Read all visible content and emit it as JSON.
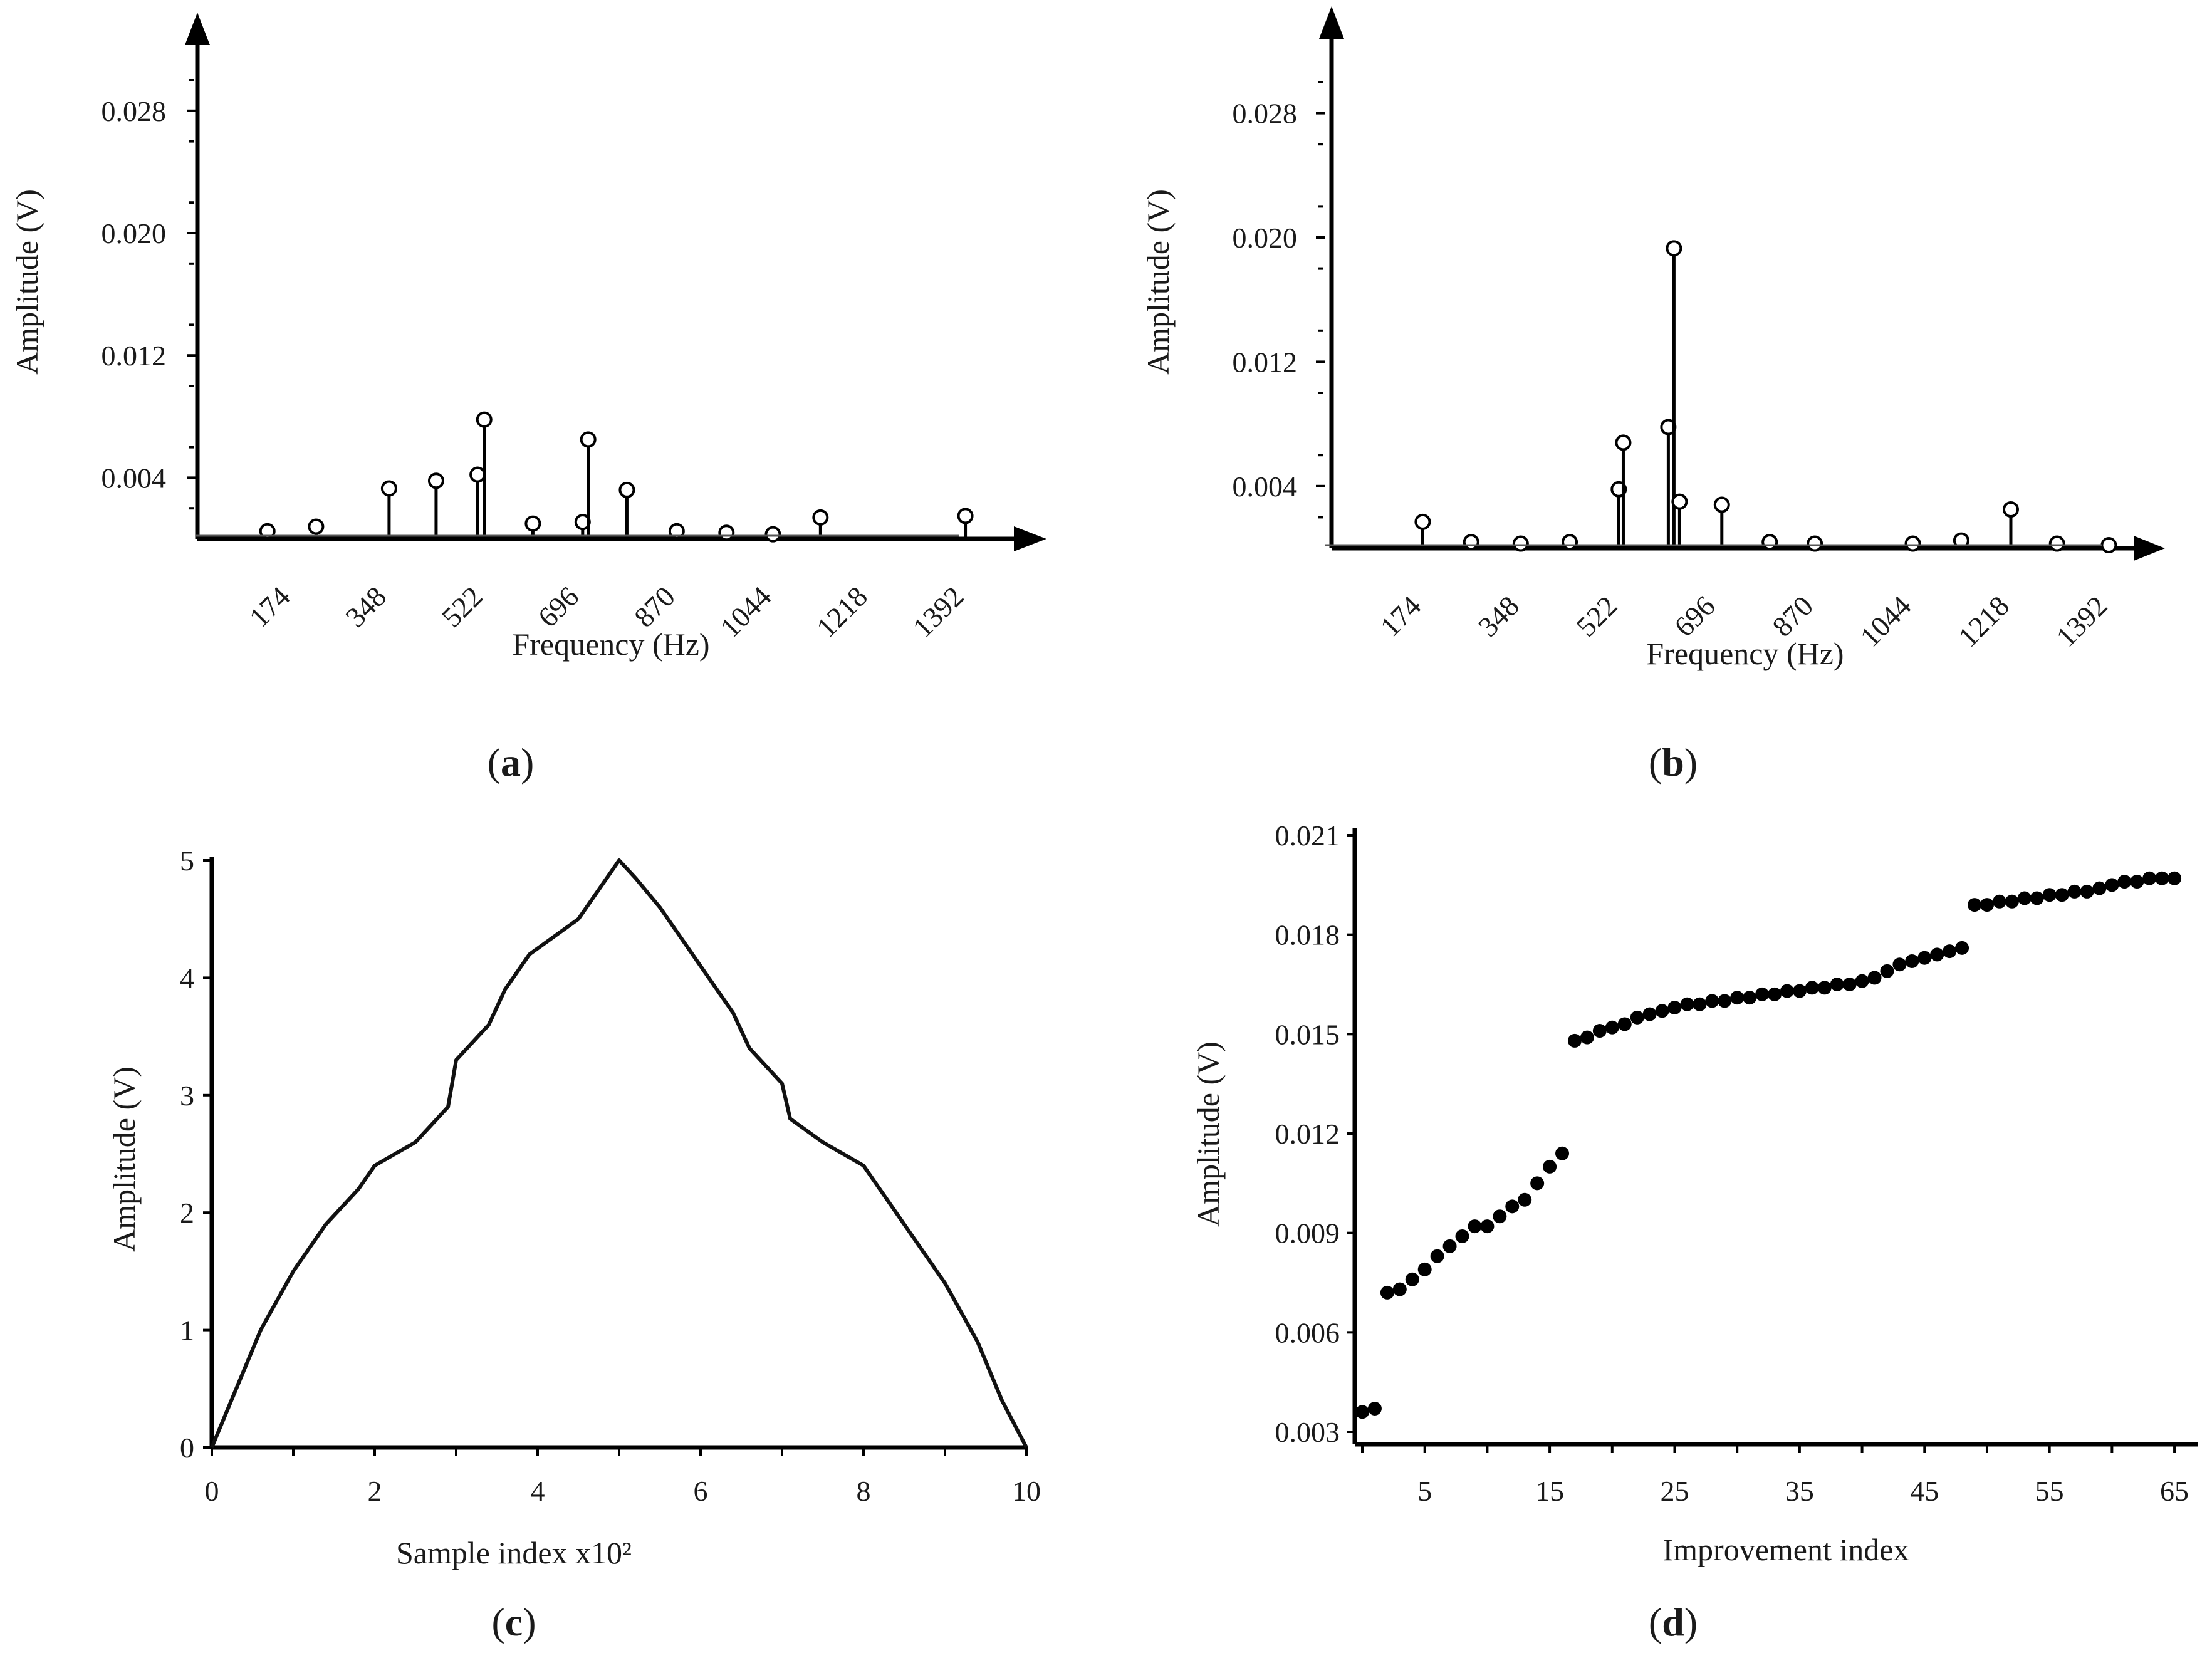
{
  "chart_data": [
    {
      "panel": "a",
      "type": "stem",
      "title": "",
      "xlabel": "Frequency (Hz)",
      "ylabel": "Amplitude (V)",
      "x_ticks": [
        "174",
        "348",
        "522",
        "696",
        "870",
        "1044",
        "1218",
        "1392"
      ],
      "y_ticks": [
        "0.004",
        "0.012",
        "0.020",
        "0.028"
      ],
      "xlim": [
        0,
        1500
      ],
      "ylim": [
        0,
        0.032
      ],
      "points": [
        {
          "x": 130,
          "y": 0.0005
        },
        {
          "x": 218,
          "y": 0.0008
        },
        {
          "x": 350,
          "y": 0.0033
        },
        {
          "x": 435,
          "y": 0.0038
        },
        {
          "x": 510,
          "y": 0.0042
        },
        {
          "x": 522,
          "y": 0.0078
        },
        {
          "x": 610,
          "y": 0.001
        },
        {
          "x": 700,
          "y": 0.0011
        },
        {
          "x": 710,
          "y": 0.0065
        },
        {
          "x": 780,
          "y": 0.0032
        },
        {
          "x": 870,
          "y": 0.0005
        },
        {
          "x": 960,
          "y": 0.0004
        },
        {
          "x": 1044,
          "y": 0.0003
        },
        {
          "x": 1130,
          "y": 0.0014
        },
        {
          "x": 1392,
          "y": 0.0015
        }
      ]
    },
    {
      "panel": "b",
      "type": "stem",
      "title": "",
      "xlabel": "Frequency (Hz)",
      "ylabel": "Amplitude (V)",
      "x_ticks": [
        "174",
        "348",
        "522",
        "696",
        "870",
        "1044",
        "1218",
        "1392"
      ],
      "y_ticks": [
        "0.004",
        "0.012",
        "0.020",
        "0.028"
      ],
      "xlim": [
        0,
        1500
      ],
      "ylim": [
        0,
        0.032
      ],
      "points": [
        {
          "x": 174,
          "y": 0.0017
        },
        {
          "x": 260,
          "y": 0.0004
        },
        {
          "x": 348,
          "y": 0.0003
        },
        {
          "x": 435,
          "y": 0.0004
        },
        {
          "x": 522,
          "y": 0.0038
        },
        {
          "x": 530,
          "y": 0.0068
        },
        {
          "x": 610,
          "y": 0.0078
        },
        {
          "x": 620,
          "y": 0.0193
        },
        {
          "x": 630,
          "y": 0.003
        },
        {
          "x": 705,
          "y": 0.0028
        },
        {
          "x": 790,
          "y": 0.0004
        },
        {
          "x": 870,
          "y": 0.0003
        },
        {
          "x": 1044,
          "y": 0.0003
        },
        {
          "x": 1130,
          "y": 0.0005
        },
        {
          "x": 1218,
          "y": 0.0025
        },
        {
          "x": 1300,
          "y": 0.0003
        },
        {
          "x": 1392,
          "y": 0.0002
        }
      ]
    },
    {
      "panel": "c",
      "type": "line",
      "title": "",
      "xlabel": "Sample index x10²",
      "ylabel": "Amplitude (V)",
      "x_ticks": [
        "0",
        "2",
        "4",
        "6",
        "8",
        "10"
      ],
      "y_ticks": [
        "0",
        "1",
        "2",
        "3",
        "4",
        "5"
      ],
      "xlim": [
        0,
        10
      ],
      "ylim": [
        0,
        5
      ],
      "x": [
        0,
        0.3,
        0.6,
        1.0,
        1.4,
        1.8,
        2.0,
        2.5,
        2.9,
        3.0,
        3.4,
        3.6,
        3.9,
        4.2,
        4.5,
        4.8,
        5.0,
        5.2,
        5.5,
        5.8,
        6.1,
        6.4,
        6.6,
        7.0,
        7.1,
        7.5,
        8.0,
        8.2,
        8.6,
        9.0,
        9.4,
        9.7,
        10.0
      ],
      "y": [
        0,
        0.5,
        1.0,
        1.5,
        1.9,
        2.2,
        2.4,
        2.6,
        2.9,
        3.3,
        3.6,
        3.9,
        4.2,
        4.35,
        4.5,
        4.8,
        5.0,
        4.85,
        4.6,
        4.3,
        4.0,
        3.7,
        3.4,
        3.1,
        2.8,
        2.6,
        2.4,
        2.2,
        1.8,
        1.4,
        0.9,
        0.4,
        0
      ]
    },
    {
      "panel": "d",
      "type": "scatter",
      "title": "",
      "xlabel": "Improvement index",
      "ylabel": "Amplitude (V)",
      "x_ticks": [
        "5",
        "15",
        "25",
        "35",
        "45",
        "55",
        "65"
      ],
      "y_ticks": [
        "0.003",
        "0.006",
        "0.009",
        "0.012",
        "0.015",
        "0.018",
        "0.021"
      ],
      "xlim": [
        0,
        66
      ],
      "ylim": [
        0.003,
        0.021
      ],
      "x": [
        0,
        1,
        2,
        3,
        4,
        5,
        6,
        7,
        8,
        9,
        10,
        11,
        12,
        13,
        14,
        15,
        16,
        17,
        18,
        19,
        20,
        21,
        22,
        23,
        24,
        25,
        26,
        27,
        28,
        29,
        30,
        31,
        32,
        33,
        34,
        35,
        36,
        37,
        38,
        39,
        40,
        41,
        42,
        43,
        44,
        45,
        46,
        47,
        48,
        49,
        50,
        51,
        52,
        53,
        54,
        55,
        56,
        57,
        58,
        59,
        60,
        61,
        62,
        63,
        64,
        65
      ],
      "y": [
        0.0036,
        0.0037,
        0.0072,
        0.0073,
        0.0076,
        0.0079,
        0.0083,
        0.0086,
        0.0089,
        0.0092,
        0.0092,
        0.0095,
        0.0098,
        0.01,
        0.0105,
        0.011,
        0.0114,
        0.0148,
        0.0149,
        0.0151,
        0.0152,
        0.0153,
        0.0155,
        0.0156,
        0.0157,
        0.0158,
        0.0159,
        0.0159,
        0.016,
        0.016,
        0.0161,
        0.0161,
        0.0162,
        0.0162,
        0.0163,
        0.0163,
        0.0164,
        0.0164,
        0.0165,
        0.0165,
        0.0166,
        0.0167,
        0.0169,
        0.0171,
        0.0172,
        0.0173,
        0.0174,
        0.0175,
        0.0176,
        0.0189,
        0.0189,
        0.019,
        0.019,
        0.0191,
        0.0191,
        0.0192,
        0.0192,
        0.0193,
        0.0193,
        0.0194,
        0.0195,
        0.0196,
        0.0196,
        0.0197,
        0.0197,
        0.0197
      ]
    }
  ],
  "panel_labels": [
    "a",
    "b",
    "c",
    "d"
  ]
}
